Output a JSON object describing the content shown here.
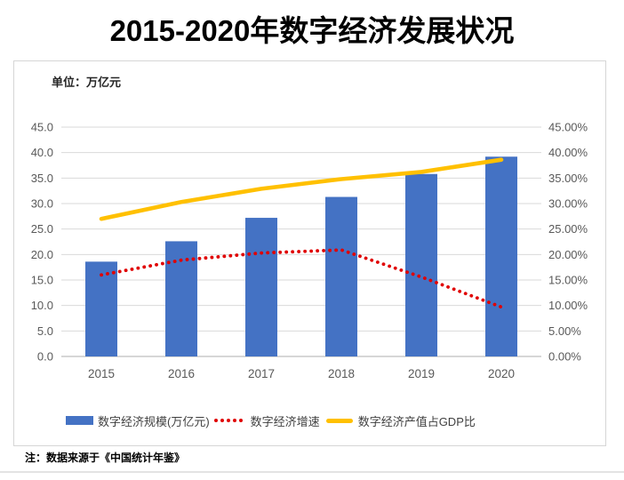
{
  "page": {
    "title": "2015-2020年数字经济发展状况",
    "footnote": "注：数据来源于《中国统计年鉴》"
  },
  "chart_data": {
    "type": "bar",
    "subtype": "combo-bar-line-dual-axis",
    "unit_label": "单位：万亿元",
    "categories": [
      "2015",
      "2016",
      "2017",
      "2018",
      "2019",
      "2020"
    ],
    "series": [
      {
        "name": "数字经济规模(万亿元)",
        "type": "bar",
        "style": "solid",
        "axis": "left",
        "color": "#4472C4",
        "values": [
          18.6,
          22.6,
          27.2,
          31.3,
          35.8,
          39.2
        ]
      },
      {
        "name": "数字经济增速",
        "type": "line",
        "style": "dotted",
        "axis": "right",
        "color": "#E00000",
        "values": [
          16.0,
          18.9,
          20.3,
          20.9,
          15.6,
          9.7
        ]
      },
      {
        "name": "数字经济产值占GDP比",
        "type": "line",
        "style": "solid",
        "axis": "right",
        "color": "#FFC000",
        "values": [
          27.0,
          30.3,
          32.9,
          34.8,
          36.2,
          38.6
        ]
      }
    ],
    "y_axis_left": {
      "min": 0,
      "max": 45,
      "ticks": [
        "45.0",
        "40.0",
        "35.0",
        "30.0",
        "25.0",
        "20.0",
        "15.0",
        "10.0",
        "5.0",
        "0.0"
      ]
    },
    "y_axis_right": {
      "min": 0,
      "max": 45,
      "ticks": [
        "45.00%",
        "40.00%",
        "35.00%",
        "30.00%",
        "25.00%",
        "20.00%",
        "15.00%",
        "10.00%",
        "5.00%",
        "0.00%"
      ]
    },
    "grid": true,
    "legend_position": "bottom",
    "colors": {
      "gridline": "#D9D9D9",
      "axis_line": "#C9C9C9",
      "tick_text": "#595959",
      "legend_text": "#404040"
    }
  }
}
